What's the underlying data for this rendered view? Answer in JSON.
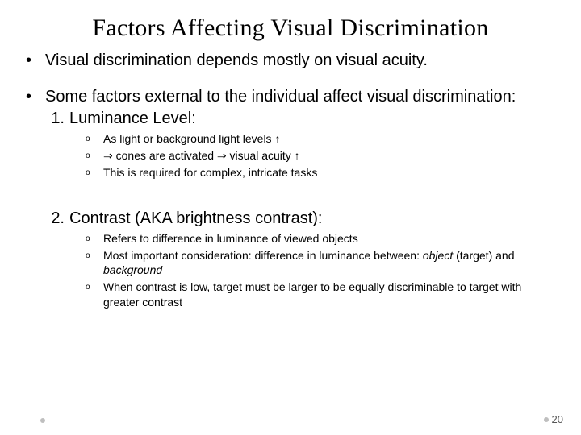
{
  "title": "Factors Affecting Visual Discrimination",
  "bullets": {
    "b1": "Visual discrimination depends mostly on visual acuity.",
    "b2": "Some factors external to the individual affect visual discrimination:"
  },
  "items": {
    "n1": {
      "num": "1.",
      "label": "Luminance Level:"
    },
    "n2": {
      "num": "2.",
      "label": "Contrast (AKA brightness contrast):"
    }
  },
  "lum": {
    "s1": "As light or background light levels ↑",
    "s2": "⇒ cones are activated ⇒ visual acuity ↑",
    "s3": "This is required for complex, intricate tasks"
  },
  "con": {
    "s1": "Refers to difference in luminance of viewed objects",
    "s2a": "Most important consideration: difference in luminance between: ",
    "s2b": "object",
    "s2c": " (target) and ",
    "s2d": "background",
    "s3": "When contrast is low, target must be larger to be equally discriminable to target with greater contrast"
  },
  "marker": {
    "dot": "•",
    "o": "o"
  },
  "page": "20",
  "colors": {
    "bg": "#ffffff",
    "text": "#000000",
    "footer_dot": "#bfbfbf",
    "page_num": "#555555"
  },
  "fonts": {
    "title_family": "Georgia",
    "title_size_pt": 22,
    "body_size_pt": 15,
    "sub_size_pt": 10
  }
}
